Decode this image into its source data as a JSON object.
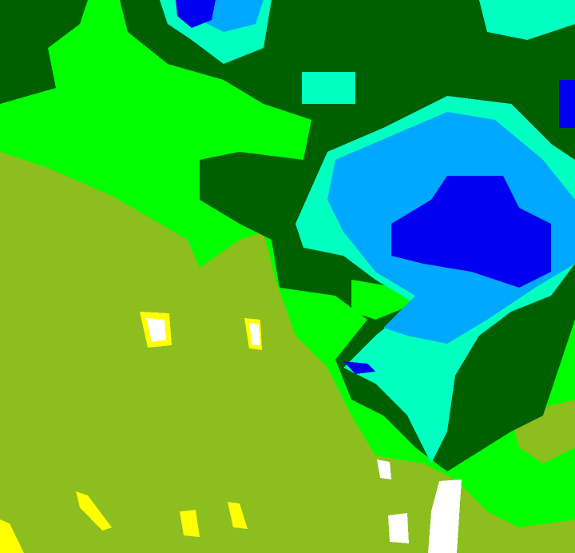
{
  "map": {
    "type": "raster classification map",
    "colors": {
      "olive": "#8cbe1e",
      "green": "#00ff00",
      "dark_green": "#006000",
      "aquamarine": "#00ffc0",
      "light_blue": "#00a8ff",
      "blue": "#0000f0",
      "yellow": "#ffff00",
      "white": "#ffffff"
    }
  }
}
